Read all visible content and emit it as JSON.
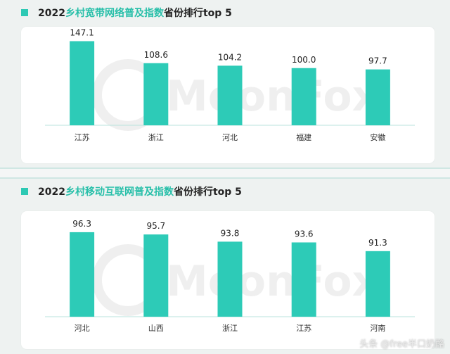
{
  "charts": [
    {
      "title_prefix": "2022",
      "title_highlight": "乡村宽带网络普及指数",
      "title_suffix": "省份排行top 5"
    },
    {
      "title_prefix": "2022",
      "title_highlight": "乡村移动互联网普及指数",
      "title_suffix": "省份排行top 5"
    }
  ],
  "watermark": "MoonFox",
  "footer": "头条 @free半口奶酪",
  "colors": {
    "bar": "#2dcbb7",
    "axis": "#b9e3dd",
    "accent": "#27bfa9"
  },
  "chart_data": [
    {
      "type": "bar",
      "title": "2022乡村宽带网络普及指数省份排行top 5",
      "categories": [
        "江苏",
        "浙江",
        "河北",
        "福建",
        "安徽"
      ],
      "values": [
        147.1,
        108.6,
        104.2,
        100.0,
        97.7
      ],
      "value_labels": [
        "147.1",
        "108.6",
        "104.2",
        "100.0",
        "97.7"
      ],
      "ylim": [
        0,
        160
      ],
      "grid": false
    },
    {
      "type": "bar",
      "title": "2022乡村移动互联网普及指数省份排行top 5",
      "categories": [
        "河北",
        "山西",
        "浙江",
        "江苏",
        "河南"
      ],
      "values": [
        96.3,
        95.7,
        93.8,
        93.6,
        91.3
      ],
      "value_labels": [
        "96.3",
        "95.7",
        "93.8",
        "93.6",
        "91.3"
      ],
      "ylim": [
        74,
        100
      ],
      "grid": false
    }
  ]
}
